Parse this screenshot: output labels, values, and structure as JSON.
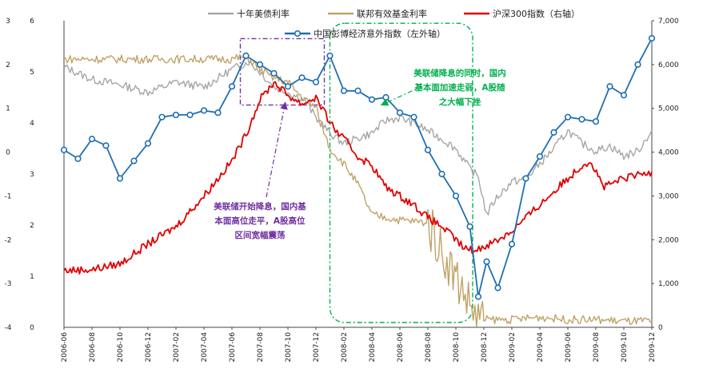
{
  "chart_data": {
    "type": "line",
    "legend": {
      "placement": "top-center",
      "items": [
        {
          "name": "十年美债利率",
          "color": "#a6a6a6"
        },
        {
          "name": "联邦有效基金利率",
          "color": "#bfa366"
        },
        {
          "name": "沪深300指数（右轴）",
          "color": "#e00000"
        },
        {
          "name": "中国彭博经济意外指数（左外轴）",
          "color": "#1f6fb2"
        }
      ]
    },
    "x_ticks": [
      "2006-06",
      "2006-08",
      "2006-10",
      "2006-12",
      "2007-02",
      "2007-04",
      "2007-06",
      "2007-08",
      "2007-10",
      "2007-12",
      "2008-02",
      "2008-04",
      "2008-06",
      "2008-08",
      "2008-10",
      "2008-12",
      "2009-02",
      "2009-04",
      "2009-06",
      "2009-08",
      "2009-10",
      "2009-12"
    ],
    "axes": {
      "left_outer": {
        "range": [
          -4,
          3
        ],
        "ticks": [
          "3",
          "2",
          "1",
          "0",
          "-1",
          "-2",
          "-3",
          "-4"
        ]
      },
      "left_inner": {
        "range": [
          0,
          6
        ],
        "ticks": [
          "6",
          "5",
          "4",
          "3",
          "2",
          "1",
          "0"
        ]
      },
      "right": {
        "range": [
          0,
          7000
        ],
        "ticks": [
          "7,000",
          "6,000",
          "5,000",
          "4,000",
          "3,000",
          "2,000",
          "1,000",
          "0"
        ]
      }
    },
    "series": [
      {
        "name": "十年美债利率",
        "axis": "left_inner",
        "color": "#a6a6a6",
        "points": [
          [
            0,
            5.1
          ],
          [
            1,
            4.85
          ],
          [
            2,
            4.75
          ],
          [
            3,
            4.6
          ],
          [
            4,
            4.8
          ],
          [
            5,
            4.7
          ],
          [
            6,
            5.05
          ],
          [
            6.6,
            5.2
          ],
          [
            7,
            5.0
          ],
          [
            7.5,
            4.7
          ],
          [
            8,
            4.6
          ],
          [
            8.6,
            4.45
          ],
          [
            9,
            4.1
          ],
          [
            9.5,
            3.8
          ],
          [
            10,
            3.6
          ],
          [
            10.5,
            3.7
          ],
          [
            11,
            3.8
          ],
          [
            11.5,
            4.05
          ],
          [
            12,
            4.1
          ],
          [
            12.5,
            4.0
          ],
          [
            13,
            3.85
          ],
          [
            13.6,
            3.65
          ],
          [
            14,
            3.5
          ],
          [
            14.5,
            3.1
          ],
          [
            14.8,
            2.95
          ],
          [
            15.1,
            2.2
          ],
          [
            15.4,
            2.5
          ],
          [
            16,
            2.85
          ],
          [
            16.5,
            2.9
          ],
          [
            17,
            3.2
          ],
          [
            17.5,
            3.5
          ],
          [
            18,
            3.85
          ],
          [
            18.5,
            3.6
          ],
          [
            19,
            3.45
          ],
          [
            19.5,
            3.55
          ],
          [
            20,
            3.35
          ],
          [
            20.5,
            3.45
          ],
          [
            21,
            3.85
          ]
        ]
      },
      {
        "name": "联邦有效基金利率",
        "axis": "left_inner",
        "color": "#bfa366",
        "points": [
          [
            0,
            5.25
          ],
          [
            3,
            5.25
          ],
          [
            6,
            5.25
          ],
          [
            6.5,
            5.3
          ],
          [
            7,
            5.05
          ],
          [
            7.4,
            4.9
          ],
          [
            8,
            4.8
          ],
          [
            8.5,
            4.5
          ],
          [
            9,
            4.3
          ],
          [
            9.5,
            3.5
          ],
          [
            10,
            3.2
          ],
          [
            10.5,
            2.8
          ],
          [
            11,
            2.2
          ],
          [
            12,
            2.1
          ],
          [
            13,
            2.05
          ],
          [
            13.5,
            1.5
          ],
          [
            13.8,
            1.2
          ],
          [
            14,
            1.0
          ],
          [
            14.5,
            0.45
          ],
          [
            14.8,
            0.2
          ],
          [
            15,
            0.15
          ],
          [
            16,
            0.15
          ],
          [
            17,
            0.2
          ],
          [
            18,
            0.15
          ],
          [
            19,
            0.15
          ],
          [
            20,
            0.12
          ],
          [
            21,
            0.12
          ]
        ]
      },
      {
        "name": "沪深300指数（右轴）",
        "axis": "right",
        "color": "#e00000",
        "points": [
          [
            0,
            1300
          ],
          [
            1,
            1320
          ],
          [
            2,
            1450
          ],
          [
            3,
            1900
          ],
          [
            4,
            2300
          ],
          [
            5,
            3000
          ],
          [
            6,
            3800
          ],
          [
            6.5,
            4400
          ],
          [
            7,
            5200
          ],
          [
            7.5,
            5600
          ],
          [
            8,
            5300
          ],
          [
            8.5,
            5100
          ],
          [
            9,
            5250
          ],
          [
            9.3,
            4900
          ],
          [
            9.7,
            4500
          ],
          [
            10,
            4300
          ],
          [
            10.5,
            3900
          ],
          [
            11,
            3700
          ],
          [
            11.5,
            3200
          ],
          [
            12,
            3000
          ],
          [
            12.5,
            2800
          ],
          [
            13,
            2500
          ],
          [
            13.5,
            2300
          ],
          [
            14,
            2000
          ],
          [
            14.3,
            1800
          ],
          [
            14.7,
            1750
          ],
          [
            15,
            1850
          ],
          [
            15.5,
            2000
          ],
          [
            16,
            2200
          ],
          [
            16.5,
            2500
          ],
          [
            17,
            2800
          ],
          [
            17.5,
            3100
          ],
          [
            18,
            3400
          ],
          [
            18.5,
            3700
          ],
          [
            18.8,
            3800
          ],
          [
            19.3,
            3200
          ],
          [
            20,
            3400
          ],
          [
            21,
            3550
          ]
        ]
      },
      {
        "name": "中国彭博经济意外指数（左外轴）",
        "axis": "left_outer",
        "color": "#1f6fb2",
        "points": [
          [
            0,
            0.05
          ],
          [
            0.5,
            -0.15
          ],
          [
            1,
            0.3
          ],
          [
            1.5,
            0.15
          ],
          [
            2,
            -0.6
          ],
          [
            2.5,
            -0.2
          ],
          [
            3,
            0.2
          ],
          [
            3.5,
            0.8
          ],
          [
            4,
            0.85
          ],
          [
            4.5,
            0.85
          ],
          [
            5,
            0.95
          ],
          [
            5.5,
            0.9
          ],
          [
            6,
            1.5
          ],
          [
            6.5,
            2.2
          ],
          [
            7,
            2.0
          ],
          [
            7.5,
            1.8
          ],
          [
            8,
            1.5
          ],
          [
            8.5,
            1.7
          ],
          [
            9,
            1.6
          ],
          [
            9.5,
            2.2
          ],
          [
            10,
            1.4
          ],
          [
            10.5,
            1.4
          ],
          [
            11,
            1.2
          ],
          [
            11.5,
            1.25
          ],
          [
            12,
            0.9
          ],
          [
            12.5,
            0.8
          ],
          [
            13,
            0.05
          ],
          [
            13.5,
            -0.5
          ],
          [
            14,
            -1.0
          ],
          [
            14.5,
            -1.7
          ],
          [
            14.8,
            -3.3
          ],
          [
            15.1,
            -2.5
          ],
          [
            15.5,
            -3.1
          ],
          [
            16,
            -2.1
          ],
          [
            16.5,
            -0.6
          ],
          [
            17,
            -0.1
          ],
          [
            17.5,
            0.45
          ],
          [
            18,
            0.8
          ],
          [
            18.5,
            0.75
          ],
          [
            19,
            0.7
          ],
          [
            19.5,
            1.5
          ],
          [
            20,
            1.3
          ],
          [
            20.5,
            2.0
          ],
          [
            21,
            2.6
          ]
        ]
      }
    ],
    "annotations": [
      {
        "lines": [
          "美联储开始降息，国内基",
          "本面高位走平，A股高位",
          "区间宽幅震荡"
        ],
        "color": "#7030a0"
      },
      {
        "lines": [
          "美联储降息的同时，国内",
          "基本面加速走弱，A股随",
          "之大幅下挫"
        ],
        "color": "#00b050"
      }
    ]
  }
}
